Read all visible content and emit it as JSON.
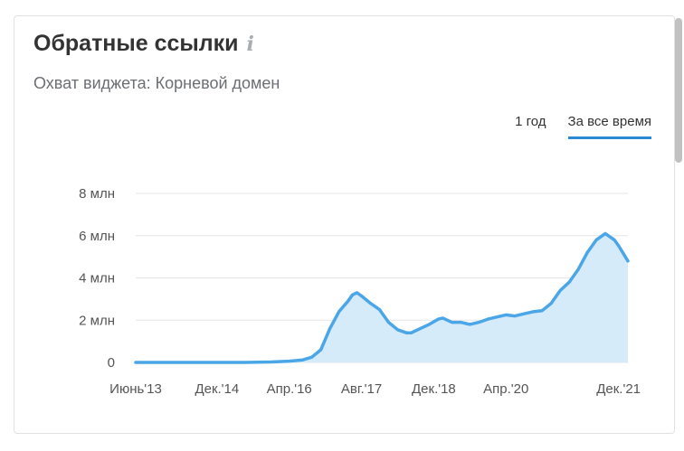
{
  "widget": {
    "title": "Обратные ссылки",
    "info_icon": "i",
    "subtitle": "Охват виджета: Корневой домен",
    "tabs": [
      {
        "label": "1 год",
        "active": false
      },
      {
        "label": "За все время",
        "active": true
      }
    ]
  },
  "colors": {
    "line": "#4ba6e8",
    "fill": "#d6ebfa",
    "grid": "#e6e6e6",
    "accent": "#2b8ad6"
  },
  "chart_data": {
    "type": "area",
    "title": "",
    "xlabel": "",
    "ylabel": "",
    "ylim": [
      0,
      8000000
    ],
    "grid": true,
    "legend": "none",
    "y_ticks": [
      {
        "value": 0,
        "label": "0"
      },
      {
        "value": 2000000,
        "label": "2 млн"
      },
      {
        "value": 4000000,
        "label": "4 млн"
      },
      {
        "value": 6000000,
        "label": "6 млн"
      },
      {
        "value": 8000000,
        "label": "8 млн"
      }
    ],
    "x_ticks": [
      {
        "x": "2013-06",
        "label": "Июнь'13"
      },
      {
        "x": "2014-12",
        "label": "Дек.'14"
      },
      {
        "x": "2016-04",
        "label": "Апр.'16"
      },
      {
        "x": "2017-08",
        "label": "Авг.'17"
      },
      {
        "x": "2018-12",
        "label": "Дек.'18"
      },
      {
        "x": "2020-04",
        "label": "Апр.'20"
      },
      {
        "x": "2021-12",
        "label": "Дек.'21"
      }
    ],
    "series": [
      {
        "values": [
          {
            "x": "2013-06",
            "y": 0
          },
          {
            "x": "2014-06",
            "y": 0
          },
          {
            "x": "2015-06",
            "y": 0
          },
          {
            "x": "2015-12",
            "y": 20000
          },
          {
            "x": "2016-04",
            "y": 60000
          },
          {
            "x": "2016-07",
            "y": 120000
          },
          {
            "x": "2016-09",
            "y": 250000
          },
          {
            "x": "2016-11",
            "y": 600000
          },
          {
            "x": "2017-01",
            "y": 1600000
          },
          {
            "x": "2017-03",
            "y": 2400000
          },
          {
            "x": "2017-05",
            "y": 2900000
          },
          {
            "x": "2017-06",
            "y": 3200000
          },
          {
            "x": "2017-07",
            "y": 3300000
          },
          {
            "x": "2017-08",
            "y": 3150000
          },
          {
            "x": "2017-10",
            "y": 2800000
          },
          {
            "x": "2017-12",
            "y": 2500000
          },
          {
            "x": "2018-02",
            "y": 1900000
          },
          {
            "x": "2018-04",
            "y": 1550000
          },
          {
            "x": "2018-06",
            "y": 1400000
          },
          {
            "x": "2018-07",
            "y": 1400000
          },
          {
            "x": "2018-09",
            "y": 1600000
          },
          {
            "x": "2018-11",
            "y": 1800000
          },
          {
            "x": "2019-01",
            "y": 2050000
          },
          {
            "x": "2019-02",
            "y": 2100000
          },
          {
            "x": "2019-04",
            "y": 1900000
          },
          {
            "x": "2019-06",
            "y": 1900000
          },
          {
            "x": "2019-08",
            "y": 1800000
          },
          {
            "x": "2019-10",
            "y": 1900000
          },
          {
            "x": "2019-12",
            "y": 2050000
          },
          {
            "x": "2020-02",
            "y": 2150000
          },
          {
            "x": "2020-04",
            "y": 2250000
          },
          {
            "x": "2020-06",
            "y": 2200000
          },
          {
            "x": "2020-08",
            "y": 2300000
          },
          {
            "x": "2020-10",
            "y": 2400000
          },
          {
            "x": "2020-12",
            "y": 2450000
          },
          {
            "x": "2021-02",
            "y": 2800000
          },
          {
            "x": "2021-04",
            "y": 3400000
          },
          {
            "x": "2021-06",
            "y": 3800000
          },
          {
            "x": "2021-08",
            "y": 4400000
          },
          {
            "x": "2021-10",
            "y": 5200000
          },
          {
            "x": "2021-12",
            "y": 5800000
          },
          {
            "x": "2022-02",
            "y": 6100000
          },
          {
            "x": "2022-04",
            "y": 5800000
          },
          {
            "x": "2022-05",
            "y": 5500000
          },
          {
            "x": "2022-07",
            "y": 4800000
          }
        ]
      }
    ]
  }
}
